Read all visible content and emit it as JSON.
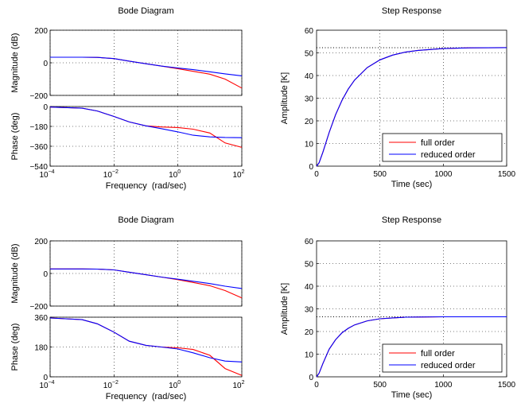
{
  "chart_data": [
    {
      "type": "line",
      "title": "Bode Diagram",
      "xlabel": "Frequency  (rad/sec)",
      "xscale": "log",
      "xlim": [
        0.0001,
        100
      ],
      "xticks": [
        {
          "value": 0.0001,
          "base": "10",
          "exp": "−4"
        },
        {
          "value": 0.01,
          "base": "10",
          "exp": "−2"
        },
        {
          "value": 1,
          "base": "10",
          "exp": "0"
        },
        {
          "value": 100,
          "base": "10",
          "exp": "2"
        }
      ],
      "panels": [
        {
          "ylabel": "Magnitude (dB)",
          "ylim": [
            -200,
            200
          ],
          "yticks": [
            200,
            0,
            -200
          ],
          "ytick_labels": [
            "200",
            "0",
            "−200"
          ],
          "x": [
            0.0001,
            0.001,
            0.003,
            0.01,
            0.03,
            0.1,
            0.3,
            1,
            3,
            10,
            30,
            100
          ],
          "series": [
            {
              "name": "full order",
              "color": "#ff0000",
              "values": [
                34,
                34,
                33,
                26,
                10,
                -6,
                -20,
                -36,
                -52,
                -70,
                -100,
                -155
              ]
            },
            {
              "name": "reduced order",
              "color": "#0000ff",
              "values": [
                34,
                34,
                33,
                26,
                10,
                -6,
                -20,
                -32,
                -42,
                -55,
                -68,
                -80
              ]
            }
          ]
        },
        {
          "ylabel": "Phase (deg)",
          "ylim": [
            -540,
            0
          ],
          "yticks": [
            0,
            -180,
            -360,
            -540
          ],
          "ytick_labels": [
            "0",
            "−180",
            "−360",
            "−540"
          ],
          "x": [
            0.0001,
            0.001,
            0.003,
            0.01,
            0.03,
            0.1,
            0.3,
            1,
            3,
            10,
            30,
            100
          ],
          "series": [
            {
              "name": "full order",
              "color": "#ff0000",
              "values": [
                -5,
                -15,
                -40,
                -90,
                -140,
                -175,
                -185,
                -190,
                -205,
                -240,
                -330,
                -370
              ]
            },
            {
              "name": "reduced order",
              "color": "#0000ff",
              "values": [
                -5,
                -15,
                -40,
                -90,
                -140,
                -175,
                -200,
                -230,
                -260,
                -275,
                -280,
                -282
              ]
            }
          ]
        }
      ]
    },
    {
      "type": "line",
      "title": "Step Response",
      "xlabel": "Time (sec)",
      "ylabel": "Amplitude [K]",
      "xlim": [
        0,
        1500
      ],
      "ylim": [
        0,
        60
      ],
      "xticks": [
        0,
        500,
        1000,
        1500
      ],
      "yticks": [
        0,
        10,
        20,
        30,
        40,
        50,
        60
      ],
      "reference_line": {
        "value": 52.3,
        "style": "dotted"
      },
      "legend": {
        "placement": "bottom-right",
        "entries": [
          "full order",
          "reduced order"
        ]
      },
      "x": [
        0,
        20,
        50,
        100,
        150,
        200,
        250,
        300,
        400,
        500,
        600,
        700,
        800,
        1000,
        1200,
        1500
      ],
      "series": [
        {
          "name": "full order",
          "color": "#ff0000",
          "values": [
            0,
            1.5,
            6.2,
            14.9,
            22.7,
            29.0,
            34.0,
            38.0,
            43.5,
            46.9,
            49.0,
            50.3,
            51.1,
            51.9,
            52.2,
            52.3
          ]
        },
        {
          "name": "reduced order",
          "color": "#0000ff",
          "values": [
            0,
            1.5,
            6.2,
            14.9,
            22.7,
            29.0,
            34.0,
            38.0,
            43.5,
            46.9,
            49.0,
            50.3,
            51.1,
            51.9,
            52.2,
            52.3
          ]
        }
      ]
    },
    {
      "type": "line",
      "title": "Bode Diagram",
      "xlabel": "Frequency  (rad/sec)",
      "xscale": "log",
      "xlim": [
        0.0001,
        100
      ],
      "xticks": [
        {
          "value": 0.0001,
          "base": "10",
          "exp": "−4"
        },
        {
          "value": 0.01,
          "base": "10",
          "exp": "−2"
        },
        {
          "value": 1,
          "base": "10",
          "exp": "0"
        },
        {
          "value": 100,
          "base": "10",
          "exp": "2"
        }
      ],
      "panels": [
        {
          "ylabel": "Magnitude (dB)",
          "ylim": [
            -200,
            200
          ],
          "yticks": [
            200,
            0,
            -200
          ],
          "ytick_labels": [
            "200",
            "0",
            "−200"
          ],
          "x": [
            0.0001,
            0.001,
            0.003,
            0.01,
            0.03,
            0.1,
            0.3,
            1,
            3,
            10,
            30,
            100
          ],
          "series": [
            {
              "name": "full order",
              "color": "#ff0000",
              "values": [
                28,
                28,
                27,
                22,
                8,
                -8,
                -22,
                -38,
                -55,
                -75,
                -105,
                -150
              ]
            },
            {
              "name": "reduced order",
              "color": "#0000ff",
              "values": [
                28,
                28,
                27,
                22,
                8,
                -8,
                -22,
                -35,
                -48,
                -62,
                -78,
                -92
              ]
            }
          ]
        },
        {
          "ylabel": "Phase (deg)",
          "ylim": [
            0,
            360
          ],
          "yticks": [
            360,
            180,
            0
          ],
          "ytick_labels": [
            "360",
            "180",
            "0"
          ],
          "x": [
            0.0001,
            0.001,
            0.003,
            0.01,
            0.03,
            0.1,
            0.3,
            1,
            3,
            10,
            30,
            100
          ],
          "series": [
            {
              "name": "full order",
              "color": "#ff0000",
              "values": [
                355,
                345,
                320,
                270,
                215,
                190,
                180,
                175,
                165,
                130,
                50,
                8
              ]
            },
            {
              "name": "reduced order",
              "color": "#0000ff",
              "values": [
                355,
                345,
                320,
                270,
                215,
                190,
                180,
                168,
                145,
                115,
                95,
                90
              ]
            }
          ]
        }
      ]
    },
    {
      "type": "line",
      "title": "Step Response",
      "xlabel": "Time (sec)",
      "ylabel": "Amplitude [K]",
      "xlim": [
        0,
        1500
      ],
      "ylim": [
        0,
        60
      ],
      "xticks": [
        0,
        500,
        1000,
        1500
      ],
      "yticks": [
        0,
        10,
        20,
        30,
        40,
        50,
        60
      ],
      "reference_line": {
        "value": 26.5,
        "style": "dotted"
      },
      "legend": {
        "placement": "bottom-right",
        "entries": [
          "full order",
          "reduced order"
        ]
      },
      "x": [
        0,
        20,
        50,
        100,
        150,
        200,
        250,
        300,
        400,
        500,
        600,
        700,
        800,
        1000,
        1200,
        1500
      ],
      "series": [
        {
          "name": "full order",
          "color": "#ff0000",
          "values": [
            0,
            1.6,
            5.9,
            12.2,
            16.4,
            19.4,
            21.4,
            22.9,
            24.7,
            25.6,
            26.0,
            26.3,
            26.4,
            26.5,
            26.5,
            26.5
          ]
        },
        {
          "name": "reduced order",
          "color": "#0000ff",
          "values": [
            0,
            1.6,
            5.9,
            12.2,
            16.4,
            19.4,
            21.4,
            22.9,
            24.7,
            25.6,
            26.0,
            26.3,
            26.4,
            26.5,
            26.5,
            26.5
          ]
        }
      ]
    }
  ]
}
